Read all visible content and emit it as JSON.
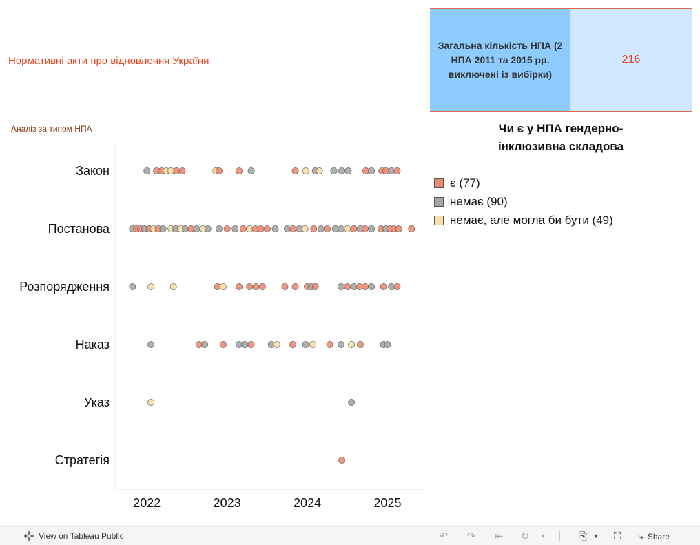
{
  "header": {
    "title": "Нормативні акти про відновлення України",
    "chart_subtitle": "Аналіз за типом НПА"
  },
  "kpi": {
    "label": "Загальна кількість НПА (2 НПА 2011 та 2015 рр. виключені із вибірки)",
    "value": "216"
  },
  "legend": {
    "title": "Чи є у НПА гендерно-інклюзивна складова",
    "items": [
      {
        "label": "є (77)",
        "color": "#f08a6e"
      },
      {
        "label": "немає (90)",
        "color": "#a6a6a6"
      },
      {
        "label": "немає, але могла би бути (49)",
        "color": "#f9dfa6"
      }
    ]
  },
  "chart_data": {
    "type": "scatter",
    "title": "Аналіз за типом НПА",
    "xlabel": "",
    "ylabel": "",
    "x_ticks": [
      "2022",
      "2023",
      "2024",
      "2025"
    ],
    "x_range": [
      2021.8,
      2025.4
    ],
    "categories": [
      "Закон",
      "Постанова",
      "Розпорядження",
      "Наказ",
      "Указ",
      "Стратегія"
    ],
    "status_colors": {
      "e": "#f08a6e",
      "n": "#a6a6a6",
      "m": "#f9dfa6"
    },
    "points": [
      {
        "cat": "Закон",
        "x": 2022.0,
        "s": "n"
      },
      {
        "cat": "Закон",
        "x": 2022.12,
        "s": "e"
      },
      {
        "cat": "Закон",
        "x": 2022.18,
        "s": "e"
      },
      {
        "cat": "Закон",
        "x": 2022.24,
        "s": "m"
      },
      {
        "cat": "Закон",
        "x": 2022.3,
        "s": "m"
      },
      {
        "cat": "Закон",
        "x": 2022.37,
        "s": "e"
      },
      {
        "cat": "Закон",
        "x": 2022.44,
        "s": "e"
      },
      {
        "cat": "Закон",
        "x": 2022.86,
        "s": "m"
      },
      {
        "cat": "Закон",
        "x": 2022.9,
        "s": "e"
      },
      {
        "cat": "Закон",
        "x": 2023.15,
        "s": "e"
      },
      {
        "cat": "Закон",
        "x": 2023.3,
        "s": "n"
      },
      {
        "cat": "Закон",
        "x": 2023.85,
        "s": "e"
      },
      {
        "cat": "Закон",
        "x": 2023.98,
        "s": "m"
      },
      {
        "cat": "Закон",
        "x": 2024.1,
        "s": "n"
      },
      {
        "cat": "Закон",
        "x": 2024.15,
        "s": "m"
      },
      {
        "cat": "Закон",
        "x": 2024.33,
        "s": "n"
      },
      {
        "cat": "Закон",
        "x": 2024.43,
        "s": "n"
      },
      {
        "cat": "Закон",
        "x": 2024.51,
        "s": "n"
      },
      {
        "cat": "Закон",
        "x": 2024.73,
        "s": "e"
      },
      {
        "cat": "Закон",
        "x": 2024.8,
        "s": "n"
      },
      {
        "cat": "Закон",
        "x": 2024.93,
        "s": "e"
      },
      {
        "cat": "Закон",
        "x": 2024.98,
        "s": "e"
      },
      {
        "cat": "Закон",
        "x": 2025.05,
        "s": "n"
      },
      {
        "cat": "Закон",
        "x": 2025.12,
        "s": "e"
      },
      {
        "cat": "Постанова",
        "x": 2021.82,
        "s": "n"
      },
      {
        "cat": "Постанова",
        "x": 2021.87,
        "s": "e"
      },
      {
        "cat": "Постанова",
        "x": 2021.92,
        "s": "e"
      },
      {
        "cat": "Постанова",
        "x": 2021.97,
        "s": "n"
      },
      {
        "cat": "Постанова",
        "x": 2022.03,
        "s": "e"
      },
      {
        "cat": "Постанова",
        "x": 2022.08,
        "s": "m"
      },
      {
        "cat": "Постанова",
        "x": 2022.14,
        "s": "e"
      },
      {
        "cat": "Постанова",
        "x": 2022.2,
        "s": "n"
      },
      {
        "cat": "Постанова",
        "x": 2022.3,
        "s": "m"
      },
      {
        "cat": "Постанова",
        "x": 2022.36,
        "s": "n"
      },
      {
        "cat": "Постанова",
        "x": 2022.42,
        "s": "m"
      },
      {
        "cat": "Постанова",
        "x": 2022.48,
        "s": "n"
      },
      {
        "cat": "Постанова",
        "x": 2022.55,
        "s": "e"
      },
      {
        "cat": "Постанова",
        "x": 2022.62,
        "s": "n"
      },
      {
        "cat": "Постанова",
        "x": 2022.7,
        "s": "m"
      },
      {
        "cat": "Постанова",
        "x": 2022.76,
        "s": "n"
      },
      {
        "cat": "Постанова",
        "x": 2022.9,
        "s": "n"
      },
      {
        "cat": "Постанова",
        "x": 2023.0,
        "s": "e"
      },
      {
        "cat": "Постанова",
        "x": 2023.1,
        "s": "n"
      },
      {
        "cat": "Постанова",
        "x": 2023.2,
        "s": "e"
      },
      {
        "cat": "Постанова",
        "x": 2023.28,
        "s": "m"
      },
      {
        "cat": "Постанова",
        "x": 2023.35,
        "s": "e"
      },
      {
        "cat": "Постанова",
        "x": 2023.42,
        "s": "e"
      },
      {
        "cat": "Постанова",
        "x": 2023.5,
        "s": "e"
      },
      {
        "cat": "Постанова",
        "x": 2023.6,
        "s": "n"
      },
      {
        "cat": "Постанова",
        "x": 2023.75,
        "s": "n"
      },
      {
        "cat": "Постанова",
        "x": 2023.82,
        "s": "e"
      },
      {
        "cat": "Постанова",
        "x": 2023.9,
        "s": "n"
      },
      {
        "cat": "Постанова",
        "x": 2023.97,
        "s": "m"
      },
      {
        "cat": "Постанова",
        "x": 2024.08,
        "s": "e"
      },
      {
        "cat": "Постанова",
        "x": 2024.17,
        "s": "n"
      },
      {
        "cat": "Постанова",
        "x": 2024.25,
        "s": "e"
      },
      {
        "cat": "Постанова",
        "x": 2024.35,
        "s": "n"
      },
      {
        "cat": "Постанова",
        "x": 2024.42,
        "s": "n"
      },
      {
        "cat": "Постанова",
        "x": 2024.5,
        "s": "m"
      },
      {
        "cat": "Постанова",
        "x": 2024.58,
        "s": "e"
      },
      {
        "cat": "Постанова",
        "x": 2024.66,
        "s": "n"
      },
      {
        "cat": "Постанова",
        "x": 2024.72,
        "s": "e"
      },
      {
        "cat": "Постанова",
        "x": 2024.8,
        "s": "n"
      },
      {
        "cat": "Постанова",
        "x": 2024.92,
        "s": "e"
      },
      {
        "cat": "Постанова",
        "x": 2024.98,
        "s": "n"
      },
      {
        "cat": "Постанова",
        "x": 2025.03,
        "s": "e"
      },
      {
        "cat": "Постанова",
        "x": 2025.08,
        "s": "e"
      },
      {
        "cat": "Постанова",
        "x": 2025.14,
        "s": "e"
      },
      {
        "cat": "Постанова",
        "x": 2025.3,
        "s": "e"
      },
      {
        "cat": "Розпорядження",
        "x": 2021.82,
        "s": "n"
      },
      {
        "cat": "Розпорядження",
        "x": 2022.05,
        "s": "m"
      },
      {
        "cat": "Розпорядження",
        "x": 2022.33,
        "s": "m"
      },
      {
        "cat": "Розпорядження",
        "x": 2022.88,
        "s": "e"
      },
      {
        "cat": "Розпорядження",
        "x": 2022.95,
        "s": "m"
      },
      {
        "cat": "Розпорядження",
        "x": 2023.15,
        "s": "e"
      },
      {
        "cat": "Розпорядження",
        "x": 2023.28,
        "s": "e"
      },
      {
        "cat": "Розпорядження",
        "x": 2023.36,
        "s": "e"
      },
      {
        "cat": "Розпорядження",
        "x": 2023.44,
        "s": "e"
      },
      {
        "cat": "Розпорядження",
        "x": 2023.72,
        "s": "e"
      },
      {
        "cat": "Розпорядження",
        "x": 2023.85,
        "s": "e"
      },
      {
        "cat": "Розпорядження",
        "x": 2024.0,
        "s": "e"
      },
      {
        "cat": "Розпорядження",
        "x": 2024.05,
        "s": "n"
      },
      {
        "cat": "Розпорядження",
        "x": 2024.1,
        "s": "e"
      },
      {
        "cat": "Розпорядження",
        "x": 2024.42,
        "s": "n"
      },
      {
        "cat": "Розпорядження",
        "x": 2024.5,
        "s": "e"
      },
      {
        "cat": "Розпорядження",
        "x": 2024.58,
        "s": "n"
      },
      {
        "cat": "Розпорядження",
        "x": 2024.65,
        "s": "e"
      },
      {
        "cat": "Розпорядження",
        "x": 2024.72,
        "s": "e"
      },
      {
        "cat": "Розпорядження",
        "x": 2024.8,
        "s": "n"
      },
      {
        "cat": "Розпорядження",
        "x": 2024.95,
        "s": "e"
      },
      {
        "cat": "Розпорядження",
        "x": 2025.05,
        "s": "n"
      },
      {
        "cat": "Розпорядження",
        "x": 2025.12,
        "s": "e"
      },
      {
        "cat": "Наказ",
        "x": 2022.05,
        "s": "n"
      },
      {
        "cat": "Наказ",
        "x": 2022.65,
        "s": "e"
      },
      {
        "cat": "Наказ",
        "x": 2022.72,
        "s": "n"
      },
      {
        "cat": "Наказ",
        "x": 2022.95,
        "s": "e"
      },
      {
        "cat": "Наказ",
        "x": 2023.15,
        "s": "n"
      },
      {
        "cat": "Наказ",
        "x": 2023.22,
        "s": "n"
      },
      {
        "cat": "Наказ",
        "x": 2023.3,
        "s": "e"
      },
      {
        "cat": "Наказ",
        "x": 2023.55,
        "s": "n"
      },
      {
        "cat": "Наказ",
        "x": 2023.62,
        "s": "m"
      },
      {
        "cat": "Наказ",
        "x": 2023.82,
        "s": "e"
      },
      {
        "cat": "Наказ",
        "x": 2023.98,
        "s": "n"
      },
      {
        "cat": "Наказ",
        "x": 2024.07,
        "s": "m"
      },
      {
        "cat": "Наказ",
        "x": 2024.28,
        "s": "e"
      },
      {
        "cat": "Наказ",
        "x": 2024.42,
        "s": "n"
      },
      {
        "cat": "Наказ",
        "x": 2024.55,
        "s": "m"
      },
      {
        "cat": "Наказ",
        "x": 2024.66,
        "s": "e"
      },
      {
        "cat": "Наказ",
        "x": 2024.95,
        "s": "n"
      },
      {
        "cat": "Наказ",
        "x": 2025.0,
        "s": "n"
      },
      {
        "cat": "Указ",
        "x": 2022.05,
        "s": "m"
      },
      {
        "cat": "Указ",
        "x": 2024.55,
        "s": "n"
      },
      {
        "cat": "Стратегія",
        "x": 2024.43,
        "s": "e"
      }
    ]
  },
  "toolbar": {
    "view_label": "View on Tableau Public",
    "share_label": "Share",
    "icons": [
      "undo-icon",
      "redo-icon",
      "revert-icon",
      "refresh-icon",
      "download-icon",
      "fullscreen-icon",
      "share-icon"
    ]
  }
}
